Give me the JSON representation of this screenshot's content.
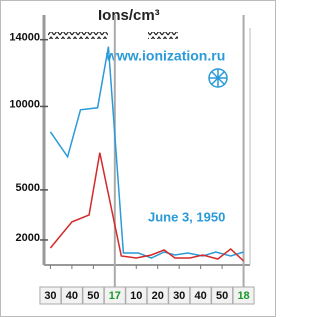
{
  "chart_data": {
    "type": "line",
    "title": "Ions/cm³",
    "annotations": [
      "www.ionization.ru",
      "June 3, 1950"
    ],
    "xlim": [
      27,
      123
    ],
    "xticks": [
      30,
      40,
      50,
      {
        "value": 60,
        "label": "17",
        "color": "#1a9a2a"
      },
      {
        "value": 70,
        "label": "10"
      },
      {
        "value": 80,
        "label": "20"
      },
      {
        "value": 90,
        "label": "30"
      },
      {
        "value": 100,
        "label": "40"
      },
      {
        "value": 110,
        "label": "50"
      },
      {
        "value": 120,
        "label": "18",
        "color": "#1a9a2a"
      }
    ],
    "ylim": [
      500,
      14700
    ],
    "yticks": [
      2000,
      5000,
      10000,
      14000
    ],
    "series": [
      {
        "name": "Blue",
        "color": "#2a9ad8",
        "x": [
          30,
          38,
          44,
          52,
          57,
          64,
          71,
          77,
          83,
          88,
          94,
          101,
          107,
          114,
          120
        ],
        "values": [
          8480,
          6980,
          9800,
          9920,
          13580,
          1220,
          1220,
          920,
          1280,
          1100,
          1220,
          1040,
          1280,
          1040,
          1280
        ]
      },
      {
        "name": "Red",
        "color": "#d42a2a",
        "x": [
          30,
          40,
          48,
          53,
          63,
          70,
          77,
          83,
          88,
          95,
          101,
          108,
          114,
          120
        ],
        "values": [
          1520,
          3080,
          3500,
          7220,
          1040,
          920,
          1100,
          1400,
          920,
          920,
          1100,
          860,
          1460,
          740
        ]
      }
    ]
  }
}
